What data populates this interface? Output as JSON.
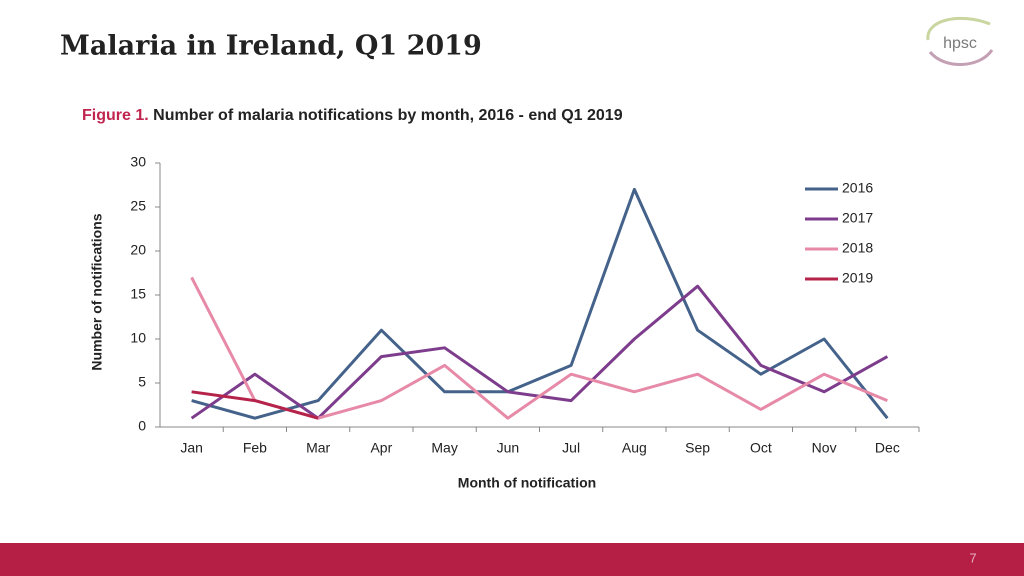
{
  "slide": {
    "title": "Malaria in Ireland, Q1 2019",
    "logo": "hpsc",
    "page_number": "7"
  },
  "chart_data": {
    "type": "line",
    "figure_label": "Figure 1.",
    "title": "Number of malaria notifications by month, 2016 - end Q1 2019",
    "x_label": "Month of notification",
    "y_label": "Number of notifications",
    "categories": [
      "Jan",
      "Feb",
      "Mar",
      "Apr",
      "May",
      "Jun",
      "Jul",
      "Aug",
      "Sep",
      "Oct",
      "Nov",
      "Dec"
    ],
    "series": [
      {
        "name": "2016",
        "color": "#44628a",
        "values": [
          3,
          1,
          3,
          11,
          4,
          4,
          7,
          27,
          11,
          6,
          10,
          1
        ]
      },
      {
        "name": "2017",
        "color": "#7d3c8c",
        "values": [
          1,
          6,
          1,
          8,
          9,
          4,
          3,
          10,
          16,
          7,
          4,
          8
        ]
      },
      {
        "name": "2018",
        "color": "#e68aa8",
        "values": [
          17,
          3,
          1,
          3,
          7,
          1,
          6,
          4,
          6,
          2,
          6,
          3
        ]
      },
      {
        "name": "2019",
        "color": "#b5234a",
        "values": [
          4,
          3,
          1,
          null,
          null,
          null,
          null,
          null,
          null,
          null,
          null,
          null
        ]
      }
    ],
    "ylim": [
      0,
      30
    ],
    "yticks": [
      0,
      5,
      10,
      15,
      20,
      25,
      30
    ],
    "grid": false,
    "legend": "top-right"
  }
}
